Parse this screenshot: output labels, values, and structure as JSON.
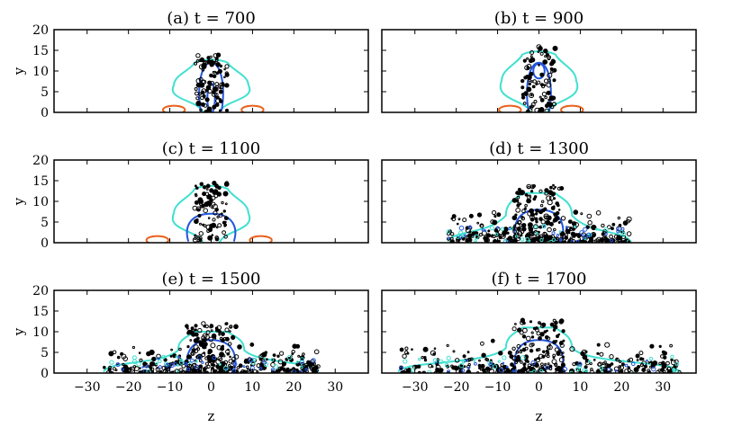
{
  "chart_data": {
    "type": "contour",
    "layout": "3 rows x 2 columns",
    "xlabel": "z",
    "ylabel": "y",
    "xlim": [
      -38,
      38
    ],
    "ylim": [
      0,
      20
    ],
    "xticks": [
      -30,
      -20,
      -10,
      0,
      10,
      20,
      30
    ],
    "yticks": [
      0,
      5,
      10,
      15,
      20
    ],
    "colors": {
      "cyan": "#40E0D0",
      "blue": "#2255DD",
      "orange": "#E8601C",
      "black": "#000000"
    },
    "panels": [
      {
        "title": "(a) t = 700",
        "spread": 0,
        "orange_lobes": [
          -9,
          10
        ],
        "cyan_top": 12,
        "blue_top": 12
      },
      {
        "title": "(b) t = 900",
        "spread": 0,
        "orange_lobes": [
          -7,
          8
        ],
        "cyan_top": 14,
        "blue_top": 12
      },
      {
        "title": "(c) t = 1100",
        "spread": 0,
        "orange_lobes": [
          -13,
          12
        ],
        "cyan_top": 13,
        "blue_top": 7
      },
      {
        "title": "(d) t = 1300",
        "spread": 22,
        "orange_lobes": [],
        "cyan_top": 12,
        "blue_top": 8
      },
      {
        "title": "(e) t = 1500",
        "spread": 26,
        "orange_lobes": [],
        "cyan_top": 10,
        "blue_top": 8
      },
      {
        "title": "(f) t = 1700",
        "spread": 34,
        "orange_lobes": [],
        "cyan_top": 11,
        "blue_top": 8
      }
    ]
  }
}
